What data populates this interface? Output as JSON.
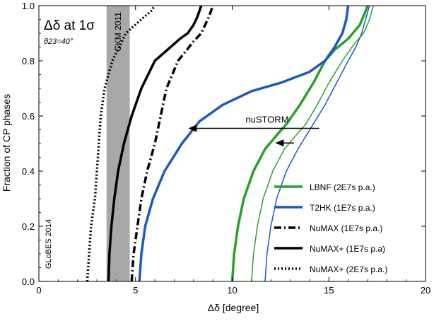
{
  "chart_data": {
    "type": "line",
    "title": "Δδ at 1σ",
    "subtitle": "θ23=40°",
    "xlabel": "Δδ [degree]",
    "ylabel": "Fraction of CP phases",
    "xlim": [
      0,
      20
    ],
    "ylim": [
      0,
      1
    ],
    "x_ticks": [
      0,
      5,
      10,
      15,
      20
    ],
    "x_tick_labels": [
      "0",
      "5",
      "10",
      "15",
      "20"
    ],
    "y_ticks": [
      0.0,
      0.2,
      0.4,
      0.6,
      0.8,
      1.0
    ],
    "y_tick_labels": [
      "0.0",
      "0.2",
      "0.4",
      "0.6",
      "0.8",
      "1.0"
    ],
    "grid": false,
    "legend_position": "bottom-right",
    "watermark": "GLoBES 2014",
    "colors": {
      "green": "#2ca02c",
      "light_green": "#8fd38f",
      "blue": "#1f57c3",
      "light_blue": "#a9bde6",
      "black": "#000000",
      "band": "#a8a8a8"
    },
    "band": {
      "label": "CKM 2011",
      "x_range": [
        3.5,
        4.7
      ]
    },
    "annotation": {
      "label": "nuSTORM",
      "arrow_main": {
        "from": [
          14.5,
          0.555
        ],
        "to": [
          7.8,
          0.555
        ],
        "y": 0.555
      },
      "arrow_small": {
        "from": [
          13.2,
          0.502
        ],
        "to": [
          12.3,
          0.502
        ],
        "y": 0.502
      }
    },
    "series": [
      {
        "name": "LBNF (2E7s p.a.)",
        "color": "#2ca02c",
        "width": 3.5,
        "dash": "",
        "points": [
          [
            10.0,
            0.0
          ],
          [
            10.1,
            0.1
          ],
          [
            10.3,
            0.2
          ],
          [
            10.6,
            0.3
          ],
          [
            11.1,
            0.4
          ],
          [
            11.7,
            0.48
          ],
          [
            12.3,
            0.53
          ],
          [
            12.8,
            0.57
          ],
          [
            13.5,
            0.64
          ],
          [
            14.2,
            0.72
          ],
          [
            14.8,
            0.8
          ],
          [
            15.3,
            0.84
          ],
          [
            16.0,
            0.88
          ],
          [
            16.6,
            0.93
          ],
          [
            16.9,
            0.98
          ],
          [
            17.0,
            1.0
          ]
        ]
      },
      {
        "name": "",
        "color": "#2ca02c",
        "width": 1.5,
        "dash": "",
        "points": [
          [
            11.0,
            0.0
          ],
          [
            11.1,
            0.1
          ],
          [
            11.3,
            0.2
          ],
          [
            11.6,
            0.3
          ],
          [
            12.1,
            0.4
          ],
          [
            12.7,
            0.48
          ],
          [
            13.3,
            0.53
          ],
          [
            13.8,
            0.57
          ],
          [
            14.4,
            0.64
          ],
          [
            15.0,
            0.72
          ],
          [
            15.7,
            0.8
          ],
          [
            16.3,
            0.86
          ],
          [
            16.8,
            0.9
          ],
          [
            17.1,
            0.95
          ],
          [
            17.3,
            1.0
          ]
        ]
      },
      {
        "name": "T2HK (1E7s p.a.)",
        "color": "#1f57c3",
        "width": 3.5,
        "dash": "",
        "points": [
          [
            5.2,
            0.0
          ],
          [
            5.3,
            0.1
          ],
          [
            5.5,
            0.2
          ],
          [
            5.9,
            0.3
          ],
          [
            6.5,
            0.4
          ],
          [
            7.4,
            0.5
          ],
          [
            8.3,
            0.58
          ],
          [
            9.5,
            0.64
          ],
          [
            11.0,
            0.69
          ],
          [
            12.5,
            0.72
          ],
          [
            14.0,
            0.76
          ],
          [
            14.8,
            0.8
          ],
          [
            15.3,
            0.85
          ],
          [
            15.7,
            0.9
          ],
          [
            15.9,
            0.95
          ],
          [
            16.0,
            1.0
          ]
        ]
      },
      {
        "name": "",
        "color": "#1f57c3",
        "width": 1.5,
        "dash": "",
        "points": [
          [
            11.7,
            0.0
          ],
          [
            11.8,
            0.1
          ],
          [
            12.0,
            0.2
          ],
          [
            12.3,
            0.3
          ],
          [
            12.8,
            0.4
          ],
          [
            13.4,
            0.48
          ],
          [
            14.1,
            0.56
          ],
          [
            14.8,
            0.64
          ],
          [
            15.4,
            0.72
          ],
          [
            16.0,
            0.8
          ],
          [
            16.4,
            0.85
          ],
          [
            16.7,
            0.9
          ],
          [
            16.9,
            0.95
          ],
          [
            17.1,
            1.0
          ]
        ]
      },
      {
        "name": "NuMAX (1E7s p.a.)",
        "color": "#000000",
        "width": 3.5,
        "dash": "10,4,2,4",
        "points": [
          [
            4.8,
            0.0
          ],
          [
            4.9,
            0.1
          ],
          [
            5.1,
            0.2
          ],
          [
            5.3,
            0.3
          ],
          [
            5.6,
            0.4
          ],
          [
            6.0,
            0.5
          ],
          [
            6.3,
            0.6
          ],
          [
            6.6,
            0.7
          ],
          [
            7.2,
            0.8
          ],
          [
            8.0,
            0.87
          ],
          [
            8.4,
            0.9
          ],
          [
            8.8,
            0.96
          ],
          [
            9.0,
            1.0
          ]
        ]
      },
      {
        "name": "NuMAX+ (1E7s p.a)",
        "color": "#000000",
        "width": 3.5,
        "dash": "",
        "points": [
          [
            3.6,
            0.0
          ],
          [
            3.65,
            0.1
          ],
          [
            3.75,
            0.2
          ],
          [
            3.9,
            0.3
          ],
          [
            4.1,
            0.4
          ],
          [
            4.4,
            0.5
          ],
          [
            4.8,
            0.6
          ],
          [
            5.3,
            0.7
          ],
          [
            6.0,
            0.8
          ],
          [
            7.3,
            0.88
          ],
          [
            7.7,
            0.9
          ],
          [
            8.0,
            0.93
          ],
          [
            8.2,
            0.96
          ],
          [
            8.4,
            1.0
          ]
        ]
      },
      {
        "name": "NuMAX+ (2E7s p.a.)",
        "color": "#000000",
        "width": 3.5,
        "dash": "2,3",
        "points": [
          [
            2.5,
            0.0
          ],
          [
            2.6,
            0.1
          ],
          [
            2.7,
            0.2
          ],
          [
            2.9,
            0.3
          ],
          [
            3.0,
            0.4
          ],
          [
            3.1,
            0.5
          ],
          [
            3.2,
            0.6
          ],
          [
            3.4,
            0.7
          ],
          [
            3.8,
            0.8
          ],
          [
            4.5,
            0.9
          ],
          [
            5.3,
            0.95
          ],
          [
            5.8,
            0.98
          ],
          [
            6.0,
            1.0
          ]
        ]
      }
    ]
  }
}
